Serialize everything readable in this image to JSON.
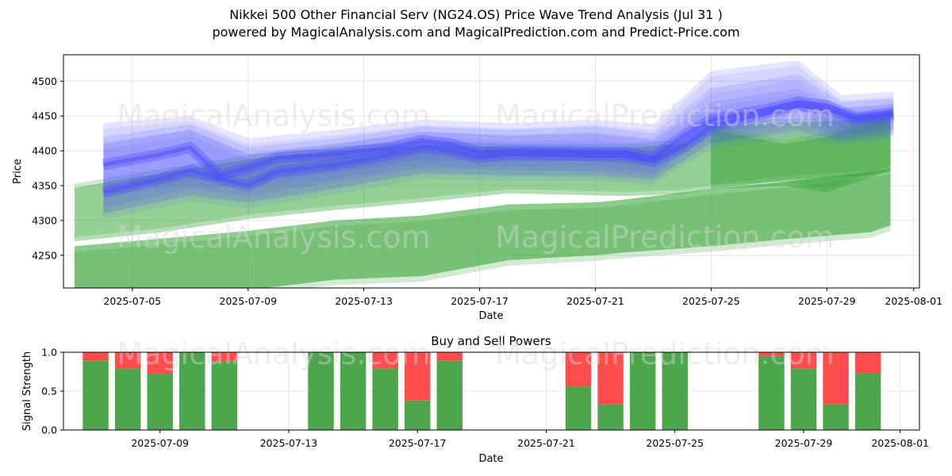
{
  "title_line1": "Nikkei 500 Other Financial Serv (NG24.OS) Price Wave Trend Analysis (Jul 31 )",
  "title_line2": "powered by MagicalAnalysis.com and MagicalPrediction.com and Predict-Price.com",
  "watermarks": [
    "MagicalAnalysis.com",
    "MagicalPrediction.com"
  ],
  "colors": {
    "green": "#2ca02c",
    "blue": "#4a4aff",
    "sell": "#ff4c4c",
    "buy": "#4ca64c"
  },
  "chart_data": [
    {
      "type": "area",
      "title": "",
      "xlabel": "Date",
      "ylabel": "Price",
      "x_ticks": [
        "2025-07-05",
        "2025-07-09",
        "2025-07-13",
        "2025-07-17",
        "2025-07-21",
        "2025-07-25",
        "2025-07-29",
        "2025-08-01"
      ],
      "y_ticks": [
        4250,
        4300,
        4350,
        4400,
        4450,
        4500
      ],
      "ylim": [
        4203,
        4538
      ],
      "xlim": [
        "2025-07-02.6",
        "2025-08-01.2"
      ],
      "green_bands": [
        {
          "name": "green-band-upper",
          "x": [
            3.0,
            6,
            9,
            12,
            15,
            18,
            21,
            22,
            24,
            25,
            27.5,
            30.5,
            31.2
          ],
          "upper": [
            4347,
            4368,
            4388,
            4400,
            4408,
            4405,
            4404,
            4404,
            4410,
            4435,
            4440,
            4445,
            4448
          ],
          "lower": [
            4270,
            4283,
            4302,
            4315,
            4326,
            4339,
            4336,
            4335,
            4338,
            4345,
            4358,
            4365,
            4370
          ]
        },
        {
          "name": "green-band-lower",
          "x": [
            3.0,
            6,
            9,
            12,
            15,
            18,
            21,
            22,
            24,
            25,
            27.5,
            30.5,
            31.2
          ],
          "upper": [
            4263,
            4274,
            4285,
            4300,
            4307,
            4323,
            4326,
            4330,
            4340,
            4345,
            4355,
            4370,
            4375
          ],
          "lower": [
            4200,
            4200,
            4200,
            4215,
            4220,
            4243,
            4250,
            4254,
            4260,
            4263,
            4273,
            4283,
            4293
          ]
        },
        {
          "name": "green-band-surge",
          "x": [
            25,
            27.5,
            29,
            31.2
          ],
          "upper": [
            4430,
            4410,
            4420,
            4452
          ],
          "lower": [
            4345,
            4350,
            4340,
            4372
          ]
        }
      ],
      "blue_bands": [
        {
          "name": "blue-band-1",
          "x": [
            4,
            7,
            9,
            12,
            15,
            18,
            21,
            23,
            25,
            28,
            29.5,
            31.3
          ],
          "upper": [
            4440,
            4450,
            4418,
            4430,
            4445,
            4440,
            4445,
            4438,
            4515,
            4530,
            4480,
            4485
          ],
          "lower": [
            4345,
            4358,
            4355,
            4368,
            4388,
            4385,
            4385,
            4378,
            4430,
            4460,
            4432,
            4440
          ]
        },
        {
          "name": "blue-band-2",
          "x": [
            4,
            7,
            9,
            12,
            15,
            18,
            21,
            23,
            25,
            28,
            29.5,
            31.3
          ],
          "upper": [
            4420,
            4438,
            4405,
            4418,
            4435,
            4430,
            4435,
            4425,
            4490,
            4510,
            4470,
            4475
          ],
          "lower": [
            4318,
            4345,
            4335,
            4355,
            4375,
            4372,
            4370,
            4365,
            4420,
            4440,
            4420,
            4430
          ]
        },
        {
          "name": "blue-band-3",
          "x": [
            4,
            7,
            9,
            12,
            15,
            18,
            21,
            23,
            25,
            28,
            29.5,
            31.3
          ],
          "upper": [
            4410,
            4430,
            4395,
            4410,
            4428,
            4422,
            4425,
            4415,
            4470,
            4490,
            4460,
            4468
          ],
          "lower": [
            4310,
            4335,
            4325,
            4345,
            4368,
            4365,
            4365,
            4360,
            4410,
            4428,
            4415,
            4425
          ]
        }
      ],
      "series": [
        {
          "name": "blue-center",
          "x": [
            4,
            6,
            7,
            8,
            9,
            10,
            12,
            14,
            15,
            16,
            17,
            18,
            21,
            22,
            23,
            24,
            25,
            27,
            28,
            29,
            30,
            31.3
          ],
          "values": [
            4380,
            4395,
            4405,
            4365,
            4375,
            4390,
            4395,
            4405,
            4415,
            4410,
            4398,
            4400,
            4398,
            4398,
            4390,
            4420,
            4445,
            4460,
            4470,
            4465,
            4448,
            4455
          ]
        },
        {
          "name": "blue-center-2",
          "x": [
            4,
            6,
            7,
            8,
            9,
            10,
            12,
            14,
            15,
            16,
            17,
            18,
            21,
            22,
            23,
            24,
            25,
            27,
            28,
            29,
            30,
            31.3
          ],
          "values": [
            4340,
            4360,
            4372,
            4360,
            4350,
            4370,
            4380,
            4395,
            4405,
            4400,
            4390,
            4395,
            4393,
            4393,
            4385,
            4405,
            4435,
            4455,
            4465,
            4460,
            4445,
            4452
          ]
        }
      ]
    },
    {
      "type": "bar",
      "title": "Buy and Sell Powers",
      "xlabel": "Date",
      "ylabel": "Signal Strength",
      "x_ticks": [
        "2025-07-09",
        "2025-07-13",
        "2025-07-17",
        "2025-07-21",
        "2025-07-25",
        "2025-07-29",
        "2025-08-01"
      ],
      "y_ticks": [
        "0.0",
        "0.5",
        "1.0"
      ],
      "ylim": [
        0,
        1
      ],
      "xlim": [
        "2025-07-06.0",
        "2025-08-01.6"
      ],
      "days": [
        7,
        8,
        9,
        10,
        11,
        14,
        15,
        16,
        17,
        18,
        22,
        23,
        24,
        25,
        28,
        29,
        30,
        31
      ],
      "buy": [
        0.89,
        0.79,
        0.72,
        1.0,
        0.88,
        1.0,
        1.0,
        0.79,
        0.38,
        0.89,
        0.56,
        0.33,
        1.0,
        1.0,
        0.95,
        0.79,
        0.33,
        0.73
      ],
      "sell": [
        0.11,
        0.21,
        0.28,
        0.0,
        0.12,
        0.0,
        0.0,
        0.21,
        0.62,
        0.11,
        0.44,
        0.67,
        0.0,
        0.0,
        0.05,
        0.21,
        0.67,
        0.27
      ]
    }
  ]
}
